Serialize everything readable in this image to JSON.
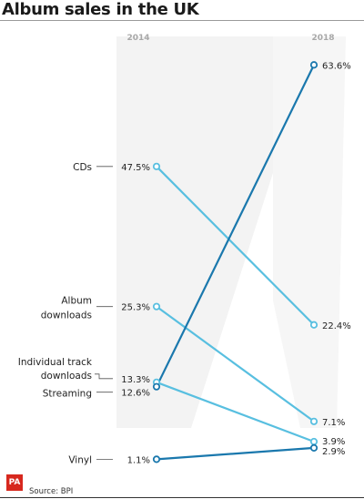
{
  "title": "Album sales in the UK",
  "source": "Source: BPI",
  "logo_text": "PA",
  "colors": {
    "dark": "#1a78ad",
    "light": "#58bfe0",
    "text": "#222222",
    "header": "#a8a8a8"
  },
  "chart_data": {
    "type": "line",
    "subtype": "slope",
    "x": [
      "2014",
      "2018"
    ],
    "ylim": [
      0,
      70
    ],
    "series": [
      {
        "name": "CDs",
        "label_lines": [
          "CDs"
        ],
        "values": [
          47.5,
          22.4
        ],
        "value_labels": [
          "47.5%",
          "22.4%"
        ],
        "color": "#58bfe0"
      },
      {
        "name": "Album downloads",
        "label_lines": [
          "Album",
          "downloads"
        ],
        "values": [
          25.3,
          7.1
        ],
        "value_labels": [
          "25.3%",
          "7.1%"
        ],
        "color": "#58bfe0"
      },
      {
        "name": "Individual track downloads",
        "label_lines": [
          "Individual track",
          "downloads"
        ],
        "values": [
          13.3,
          3.9
        ],
        "value_labels": [
          "13.3%",
          "3.9%"
        ],
        "color": "#58bfe0"
      },
      {
        "name": "Streaming",
        "label_lines": [
          "Streaming"
        ],
        "values": [
          12.6,
          63.6
        ],
        "value_labels": [
          "12.6%",
          "63.6%"
        ],
        "color": "#1a78ad"
      },
      {
        "name": "Vinyl",
        "label_lines": [
          "Vinyl"
        ],
        "values": [
          1.1,
          2.9
        ],
        "value_labels": [
          "1.1%",
          "2.9%"
        ],
        "color": "#1a78ad"
      }
    ]
  }
}
